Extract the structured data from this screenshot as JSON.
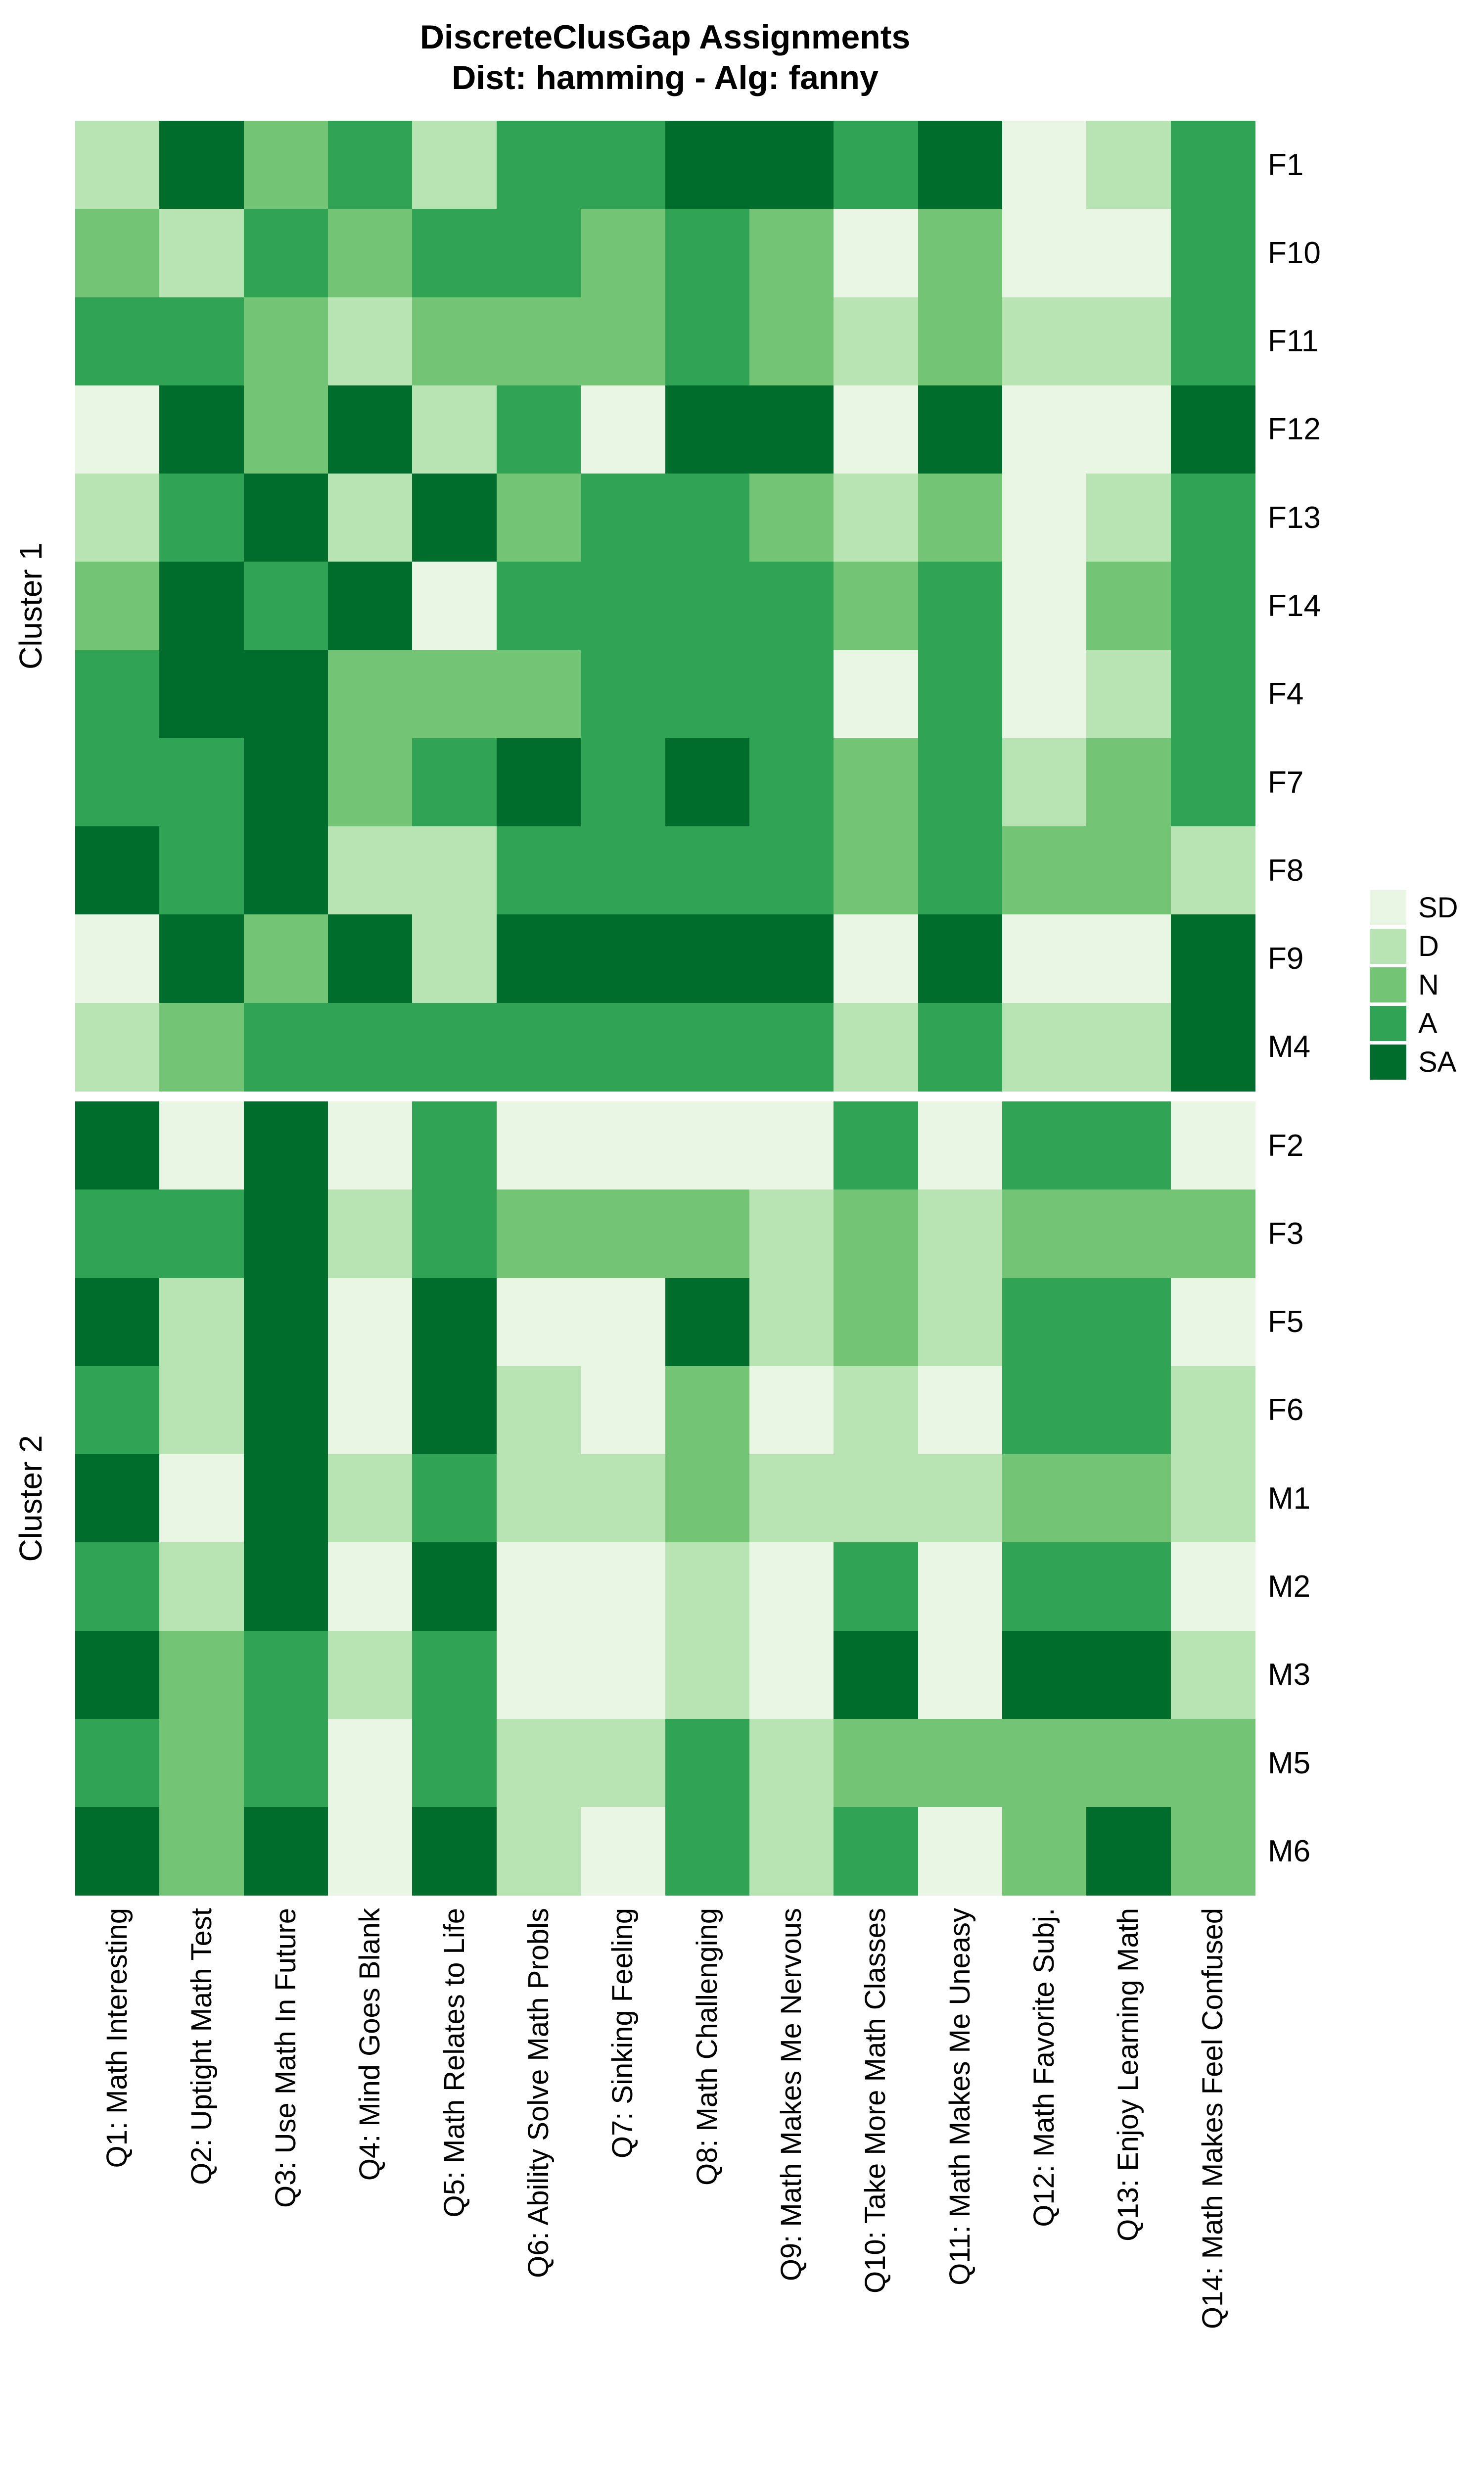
{
  "title": {
    "line1": "DiscreteClusGap Assignments",
    "line2": "Dist: hamming - Alg: fanny"
  },
  "legend": {
    "items": [
      {
        "label": "SD",
        "color": "#E8F6E3"
      },
      {
        "label": "D",
        "color": "#B8E3B2"
      },
      {
        "label": "N",
        "color": "#74C476"
      },
      {
        "label": "A",
        "color": "#31A354"
      },
      {
        "label": "SA",
        "color": "#006D2C"
      }
    ]
  },
  "chart_data": {
    "type": "heatmap",
    "title": "DiscreteClusGap Assignments",
    "subtitle": "Dist: hamming - Alg: fanny",
    "legend_position": "right",
    "value_scale": [
      "SD",
      "D",
      "N",
      "A",
      "SA"
    ],
    "value_colors": {
      "SD": "#E8F6E3",
      "D": "#B8E3B2",
      "N": "#74C476",
      "A": "#31A354",
      "SA": "#006D2C"
    },
    "columns": [
      "Q1: Math Interesting",
      "Q2: Uptight Math Test",
      "Q3: Use Math In Future",
      "Q4: Mind Goes Blank",
      "Q5: Math Relates to Life",
      "Q6: Ability Solve Math Probls",
      "Q7: Sinking Feeling",
      "Q8: Math Challenging",
      "Q9: Math Makes Me Nervous",
      "Q10: Take More Math Classes",
      "Q11: Math Makes Me Uneasy",
      "Q12: Math Favorite Subj.",
      "Q13: Enjoy Learning Math",
      "Q14: Math Makes Feel Confused"
    ],
    "clusters": [
      {
        "name": "Cluster 1",
        "rows": [
          {
            "id": "F1",
            "values": [
              "D",
              "SA",
              "N",
              "A",
              "D",
              "A",
              "A",
              "SA",
              "SA",
              "A",
              "SA",
              "SD",
              "D",
              "A"
            ]
          },
          {
            "id": "F10",
            "values": [
              "N",
              "D",
              "A",
              "N",
              "A",
              "A",
              "N",
              "A",
              "N",
              "SD",
              "N",
              "SD",
              "SD",
              "A"
            ]
          },
          {
            "id": "F11",
            "values": [
              "A",
              "A",
              "N",
              "D",
              "N",
              "N",
              "N",
              "A",
              "N",
              "D",
              "N",
              "D",
              "D",
              "A"
            ]
          },
          {
            "id": "F12",
            "values": [
              "SD",
              "SA",
              "N",
              "SA",
              "D",
              "A",
              "SD",
              "SA",
              "SA",
              "SD",
              "SA",
              "SD",
              "SD",
              "SA"
            ]
          },
          {
            "id": "F13",
            "values": [
              "D",
              "A",
              "SA",
              "D",
              "SA",
              "N",
              "A",
              "A",
              "N",
              "D",
              "N",
              "SD",
              "D",
              "A"
            ]
          },
          {
            "id": "F14",
            "values": [
              "N",
              "SA",
              "A",
              "SA",
              "SD",
              "A",
              "A",
              "A",
              "A",
              "N",
              "A",
              "SD",
              "N",
              "A"
            ]
          },
          {
            "id": "F4",
            "values": [
              "A",
              "SA",
              "SA",
              "N",
              "N",
              "N",
              "A",
              "A",
              "A",
              "SD",
              "A",
              "SD",
              "D",
              "A"
            ]
          },
          {
            "id": "F7",
            "values": [
              "A",
              "A",
              "SA",
              "N",
              "A",
              "SA",
              "A",
              "SA",
              "A",
              "N",
              "A",
              "D",
              "N",
              "A"
            ]
          },
          {
            "id": "F8",
            "values": [
              "SA",
              "A",
              "SA",
              "D",
              "D",
              "A",
              "A",
              "A",
              "A",
              "N",
              "A",
              "N",
              "N",
              "D"
            ]
          },
          {
            "id": "F9",
            "values": [
              "SD",
              "SA",
              "N",
              "SA",
              "D",
              "SA",
              "SA",
              "SA",
              "SA",
              "SD",
              "SA",
              "SD",
              "SD",
              "SA"
            ]
          },
          {
            "id": "M4",
            "values": [
              "D",
              "N",
              "A",
              "A",
              "A",
              "A",
              "A",
              "A",
              "A",
              "D",
              "A",
              "D",
              "D",
              "SA"
            ]
          }
        ]
      },
      {
        "name": "Cluster 2",
        "rows": [
          {
            "id": "F2",
            "values": [
              "SA",
              "SD",
              "SA",
              "SD",
              "A",
              "SD",
              "SD",
              "SD",
              "SD",
              "A",
              "SD",
              "A",
              "A",
              "SD"
            ]
          },
          {
            "id": "F3",
            "values": [
              "A",
              "A",
              "SA",
              "D",
              "A",
              "N",
              "N",
              "N",
              "D",
              "N",
              "D",
              "N",
              "N",
              "N"
            ]
          },
          {
            "id": "F5",
            "values": [
              "SA",
              "D",
              "SA",
              "SD",
              "SA",
              "SD",
              "SD",
              "SA",
              "D",
              "N",
              "D",
              "A",
              "A",
              "SD"
            ]
          },
          {
            "id": "F6",
            "values": [
              "A",
              "D",
              "SA",
              "SD",
              "SA",
              "D",
              "SD",
              "N",
              "SD",
              "D",
              "SD",
              "A",
              "A",
              "D"
            ]
          },
          {
            "id": "M1",
            "values": [
              "SA",
              "SD",
              "SA",
              "D",
              "A",
              "D",
              "D",
              "N",
              "D",
              "D",
              "D",
              "N",
              "N",
              "D"
            ]
          },
          {
            "id": "M2",
            "values": [
              "A",
              "D",
              "SA",
              "SD",
              "SA",
              "SD",
              "SD",
              "D",
              "SD",
              "A",
              "SD",
              "A",
              "A",
              "SD"
            ]
          },
          {
            "id": "M3",
            "values": [
              "SA",
              "N",
              "A",
              "D",
              "A",
              "SD",
              "SD",
              "D",
              "SD",
              "SA",
              "SD",
              "SA",
              "SA",
              "D"
            ]
          },
          {
            "id": "M5",
            "values": [
              "A",
              "N",
              "A",
              "SD",
              "A",
              "D",
              "D",
              "A",
              "D",
              "N",
              "N",
              "N",
              "N",
              "N"
            ]
          },
          {
            "id": "M6",
            "values": [
              "SA",
              "N",
              "SA",
              "SD",
              "SA",
              "D",
              "SD",
              "A",
              "D",
              "A",
              "SD",
              "N",
              "SA",
              "N"
            ]
          }
        ]
      }
    ]
  }
}
